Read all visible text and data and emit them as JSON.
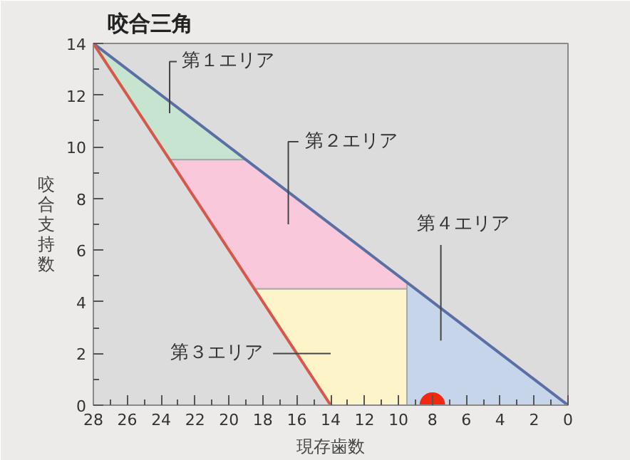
{
  "chart_data": {
    "type": "line",
    "title": "咬合三角",
    "xlabel": "現存歯数",
    "ylabel": "咬合支持数",
    "xlim": [
      28,
      0
    ],
    "ylim": [
      0,
      14
    ],
    "xticks": [
      28,
      26,
      24,
      22,
      20,
      18,
      16,
      14,
      12,
      10,
      8,
      6,
      4,
      2,
      0
    ],
    "yticks": [
      0,
      2,
      4,
      6,
      8,
      10,
      12,
      14
    ],
    "grid": false,
    "series": [
      {
        "type": "area",
        "color": "#c7e4d0",
        "x": [
          28,
          19,
          23.5
        ],
        "values": [
          14,
          9.5,
          9.5
        ]
      },
      {
        "type": "area",
        "color": "#f9c8da",
        "x": [
          23.5,
          19,
          9.5,
          9.5,
          18.5
        ],
        "values": [
          9.5,
          9.5,
          4.75,
          4.5,
          4.5
        ]
      },
      {
        "type": "area",
        "color": "#fdf5c9",
        "x": [
          18.5,
          9.5,
          9.5,
          14
        ],
        "values": [
          4.5,
          4.5,
          0,
          0
        ]
      },
      {
        "type": "area",
        "color": "#c6d5ea",
        "x": [
          9.5,
          0,
          9.5
        ],
        "values": [
          4.75,
          0,
          0
        ]
      },
      {
        "color": "#5a6fa3",
        "x": [
          28,
          0
        ],
        "values": [
          14,
          0
        ]
      },
      {
        "color": "#d6584a",
        "x": [
          28,
          14
        ],
        "values": [
          14,
          0
        ]
      },
      {
        "type": "scatter",
        "color": "#f02a10",
        "marker": "circle",
        "x": [
          8
        ],
        "values": [
          0
        ]
      }
    ],
    "annotations": [
      "第１エリア",
      "第２エリア",
      "第３エリア",
      "第４エリア"
    ]
  }
}
